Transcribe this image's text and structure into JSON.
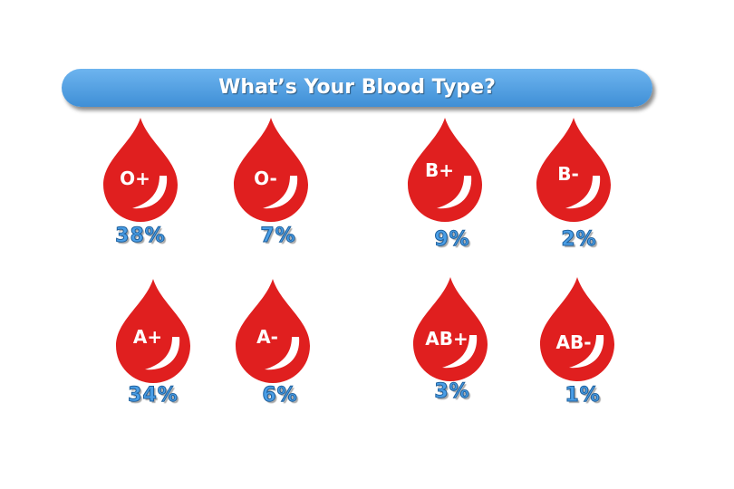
{
  "title": "What’s Your Blood Type?",
  "colors": {
    "drop": "#e01f1f",
    "banner": "#4f9fe2",
    "percent": "#4a9ee6"
  },
  "blood_types": [
    {
      "type": "O+",
      "percent": "38%"
    },
    {
      "type": "O-",
      "percent": "7%"
    },
    {
      "type": "B+",
      "percent": "9%"
    },
    {
      "type": "B-",
      "percent": "2%"
    },
    {
      "type": "A+",
      "percent": "34%"
    },
    {
      "type": "A-",
      "percent": "6%"
    },
    {
      "type": "AB+",
      "percent": "3%"
    },
    {
      "type": "AB-",
      "percent": "1%"
    }
  ]
}
